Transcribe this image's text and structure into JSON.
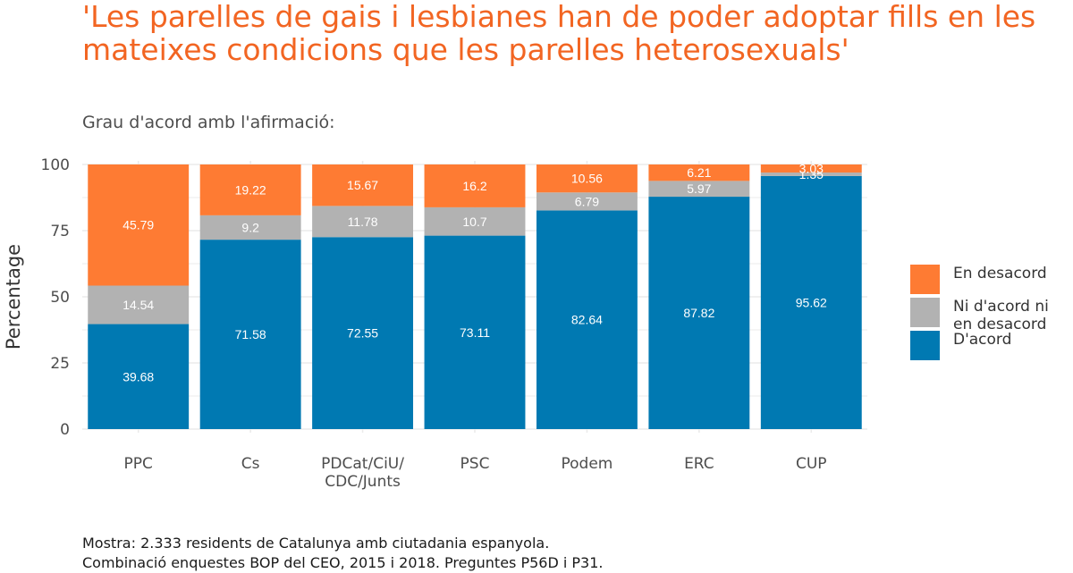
{
  "title": "'Les parelles de gais i lesbianes han de poder adoptar fills en les mateixes condicions que les parelles heterosexuals'",
  "subtitle": "Grau d'acord amb l'afirmació:",
  "caption": {
    "line1": "Mostra: 2.333 residents de Catalunya amb ciutadania espanyola.",
    "line2": "Combinació enquestes BOP del CEO, 2015 i 2018. Preguntes P56D i P31."
  },
  "colors": {
    "en_desacord": "#fe7b33",
    "ni_ni": "#b2b2b2",
    "dacord": "#0079b2",
    "title": "#f26522",
    "grid": "#ebebeb",
    "bar_label": "#ffffff"
  },
  "legend": [
    {
      "label": "En desacord",
      "color": "#fe7b33"
    },
    {
      "label": "Ni d'acord ni\nen desacord",
      "color": "#b2b2b2"
    },
    {
      "label": "D'acord",
      "color": "#0079b2"
    }
  ],
  "chart_data": {
    "type": "bar",
    "stacked": true,
    "title": "'Les parelles de gais i lesbianes han de poder adoptar fills en les mateixes condicions que les parelles heterosexuals'",
    "subtitle": "Grau d'acord amb l'afirmació:",
    "xlabel": "",
    "ylabel": "Percentage",
    "ylim": [
      0,
      100
    ],
    "yticks": [
      0,
      25,
      50,
      75,
      100
    ],
    "grid": true,
    "legend_position": "right",
    "categories": [
      "PPC",
      "Cs",
      "PDCat/CiU/\nCDC/Junts",
      "PSC",
      "Podem",
      "ERC",
      "CUP"
    ],
    "series": [
      {
        "name": "D'acord",
        "color": "#0079b2",
        "values": [
          39.68,
          71.58,
          72.55,
          73.11,
          82.64,
          87.82,
          95.62
        ]
      },
      {
        "name": "Ni d'acord ni en desacord",
        "color": "#b2b2b2",
        "values": [
          14.54,
          9.2,
          11.78,
          10.7,
          6.79,
          5.97,
          1.35
        ]
      },
      {
        "name": "En desacord",
        "color": "#fe7b33",
        "values": [
          45.79,
          19.22,
          15.67,
          16.2,
          10.56,
          6.21,
          3.03
        ]
      }
    ]
  }
}
